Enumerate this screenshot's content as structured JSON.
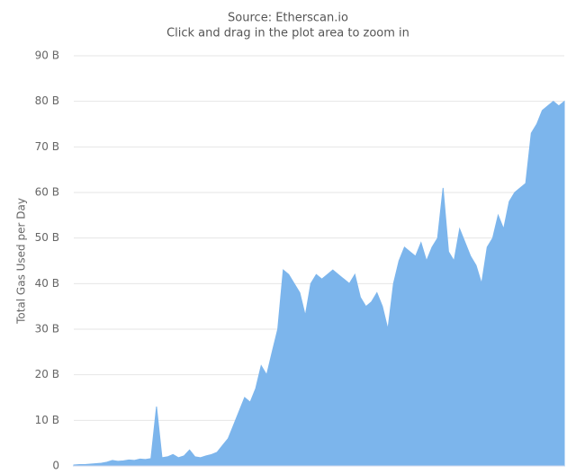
{
  "chart_data": {
    "type": "area",
    "subtitle": [
      "Source: Etherscan.io",
      "Click and drag in the plot area to zoom in"
    ],
    "y_label": "Total Gas Used per Day",
    "color": "#7cb5ec",
    "values": [
      0.2,
      0.3,
      0.3,
      0.4,
      0.5,
      0.6,
      0.8,
      1.2,
      1.0,
      1.1,
      1.3,
      1.2,
      1.5,
      1.4,
      1.6,
      13,
      1.8,
      2.0,
      2.5,
      1.8,
      2.2,
      3.5,
      2.0,
      1.8,
      2.2,
      2.5,
      3.0,
      4.5,
      6,
      9,
      12,
      15,
      14,
      17,
      22,
      20,
      25,
      30,
      43,
      42,
      40,
      38,
      33,
      40,
      42,
      41,
      42,
      43,
      42,
      41,
      40,
      42,
      37,
      35,
      36,
      38,
      35,
      30,
      40,
      45,
      48,
      47,
      46,
      49,
      45,
      48,
      50,
      61,
      47,
      45,
      52,
      49,
      46,
      44,
      40,
      48,
      50,
      55,
      52,
      58,
      60,
      61,
      62,
      73,
      75,
      78,
      79,
      80,
      79,
      80
    ],
    "ylim": [
      0,
      90
    ],
    "yticks": [
      0,
      {
        "value": 10,
        "label": "10 B"
      },
      {
        "value": 20,
        "label": "20 B"
      },
      {
        "value": 30,
        "label": "30 B"
      },
      {
        "value": 40,
        "label": "40 B"
      },
      {
        "value": 50,
        "label": "50 B"
      },
      {
        "value": 60,
        "label": "60 B"
      },
      {
        "value": 70,
        "label": "70 B"
      },
      {
        "value": 80,
        "label": "80 B"
      },
      {
        "value": 90,
        "label": "90 B"
      }
    ],
    "grid": true
  }
}
